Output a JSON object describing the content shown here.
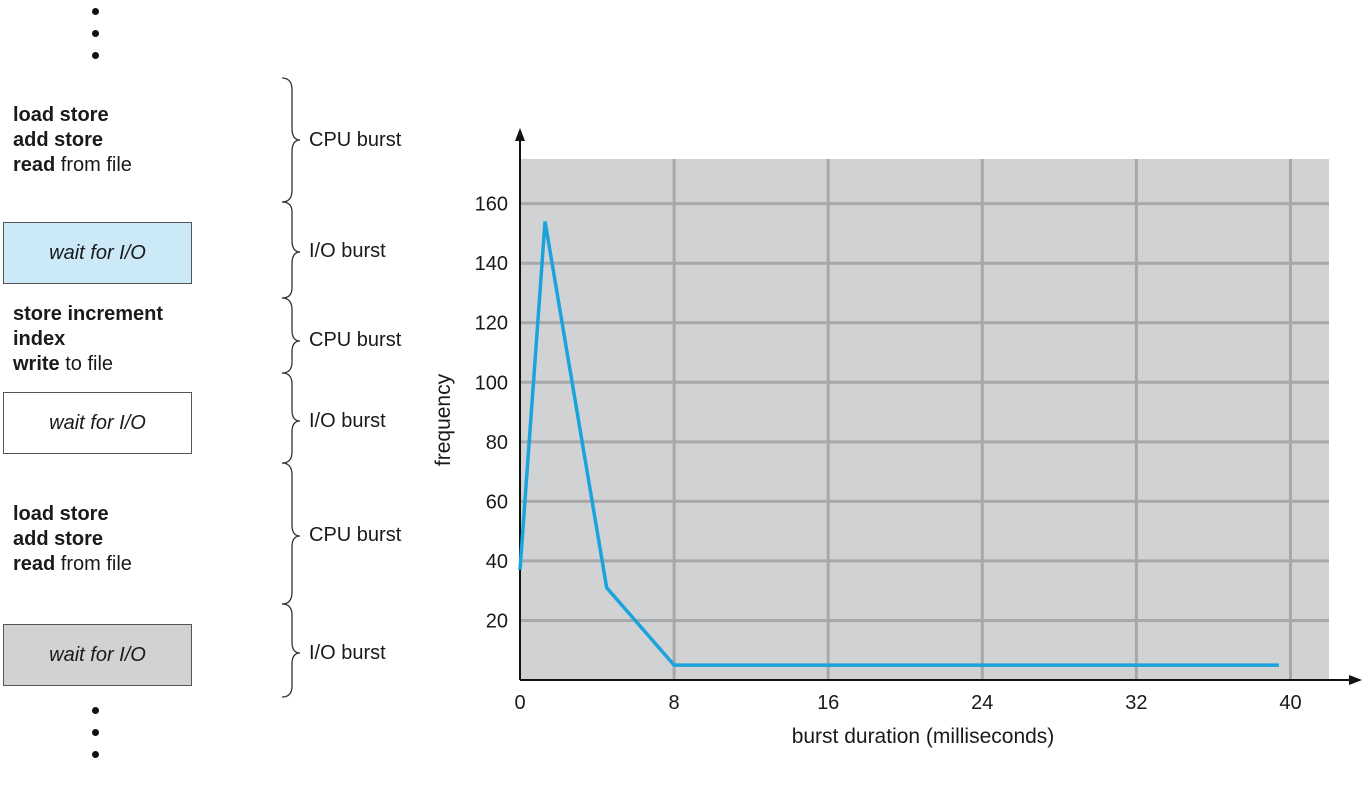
{
  "sequence": {
    "blocks": [
      {
        "type": "cpu",
        "lines": [
          {
            "bold": "load store",
            "rest": ""
          },
          {
            "bold": "add store",
            "rest": ""
          },
          {
            "bold": "read",
            "rest": " from file"
          }
        ],
        "burst_label": "CPU burst"
      },
      {
        "type": "io",
        "label": "wait for I/O",
        "fill": "#cce9f7",
        "burst_label": "I/O burst"
      },
      {
        "type": "cpu",
        "lines": [
          {
            "bold": "store increment",
            "rest": ""
          },
          {
            "bold": "index",
            "rest": ""
          },
          {
            "bold": "write",
            "rest": " to file"
          }
        ],
        "burst_label": "CPU burst"
      },
      {
        "type": "io",
        "label": "wait for I/O",
        "fill": "#ffffff",
        "burst_label": "I/O burst"
      },
      {
        "type": "cpu",
        "lines": [
          {
            "bold": "load store",
            "rest": ""
          },
          {
            "bold": "add store",
            "rest": ""
          },
          {
            "bold": "read",
            "rest": " from file"
          }
        ],
        "burst_label": "CPU burst"
      },
      {
        "type": "io",
        "label": "wait for I/O",
        "fill": "#d1d2d3",
        "burst_label": "I/O burst"
      }
    ]
  },
  "chart_data": {
    "type": "line",
    "xlabel": "burst duration (milliseconds)",
    "ylabel": "frequency",
    "xlim": [
      0,
      42
    ],
    "ylim": [
      0,
      175
    ],
    "xticks": [
      0,
      8,
      16,
      24,
      32,
      40
    ],
    "yticks": [
      20,
      40,
      60,
      80,
      100,
      120,
      140,
      160
    ],
    "grid": true,
    "plot_background": "#d1d2d3",
    "grid_color": "#a7a8aa",
    "series": [
      {
        "color": "#1aa3dc",
        "x": [
          0,
          1.3,
          4.5,
          8,
          39.4
        ],
        "y": [
          37,
          154,
          31,
          5,
          5
        ]
      }
    ]
  }
}
